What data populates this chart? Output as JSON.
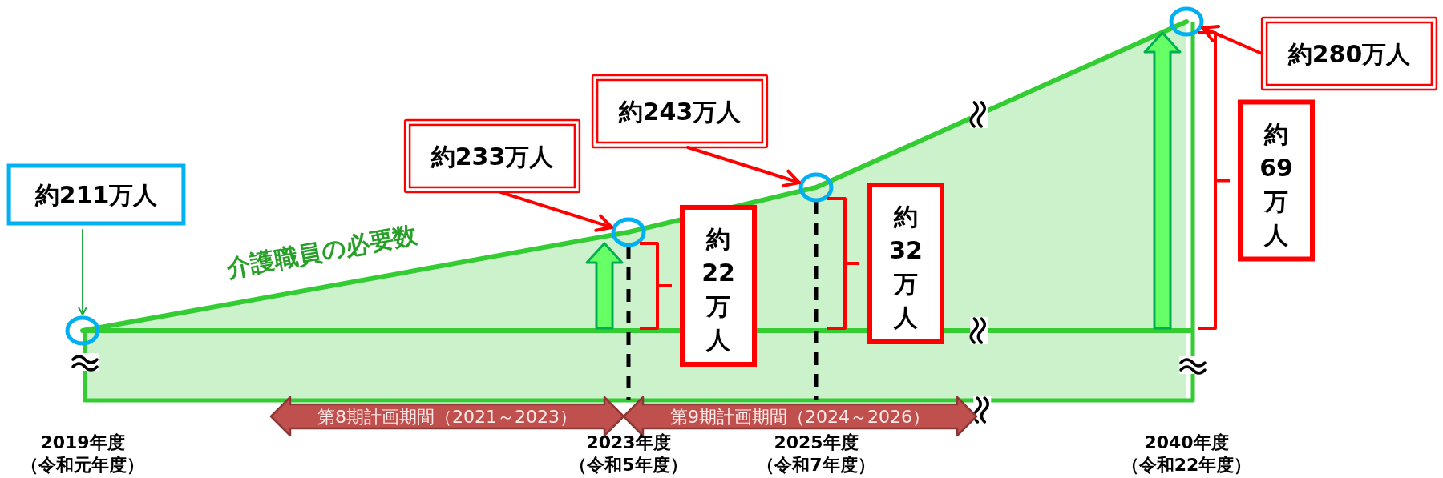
{
  "chart_data": {
    "type": "area",
    "categories": [
      "2019年度（令和元年度）",
      "2023年度（令和5年度）",
      "2025年度（令和7年度）",
      "2040年度（令和22年度）"
    ],
    "series": [
      {
        "name": "介護職員の必要数",
        "color": "#33cc33",
        "values": [
          211,
          233,
          243,
          280
        ],
        "value_labels": [
          "約211万人",
          "約233万人",
          "約243万人",
          "約280万人"
        ]
      }
    ],
    "marker": "circle",
    "ref_lines": [
      {
        "axis": "y",
        "value": 211,
        "color": "#33cc33"
      },
      {
        "axis": "x",
        "value": "2023年度（令和5年度）",
        "color": "#000000",
        "line_style": "dashed"
      },
      {
        "axis": "x",
        "value": "2025年度（令和7年度）",
        "color": "#000000",
        "line_style": "dashed"
      }
    ],
    "annotations": [
      "約22万人",
      "約32万人",
      "約69万人",
      "第8期計画期間（2021～2023）",
      "第9期計画期間（2024～2026）"
    ]
  }
}
